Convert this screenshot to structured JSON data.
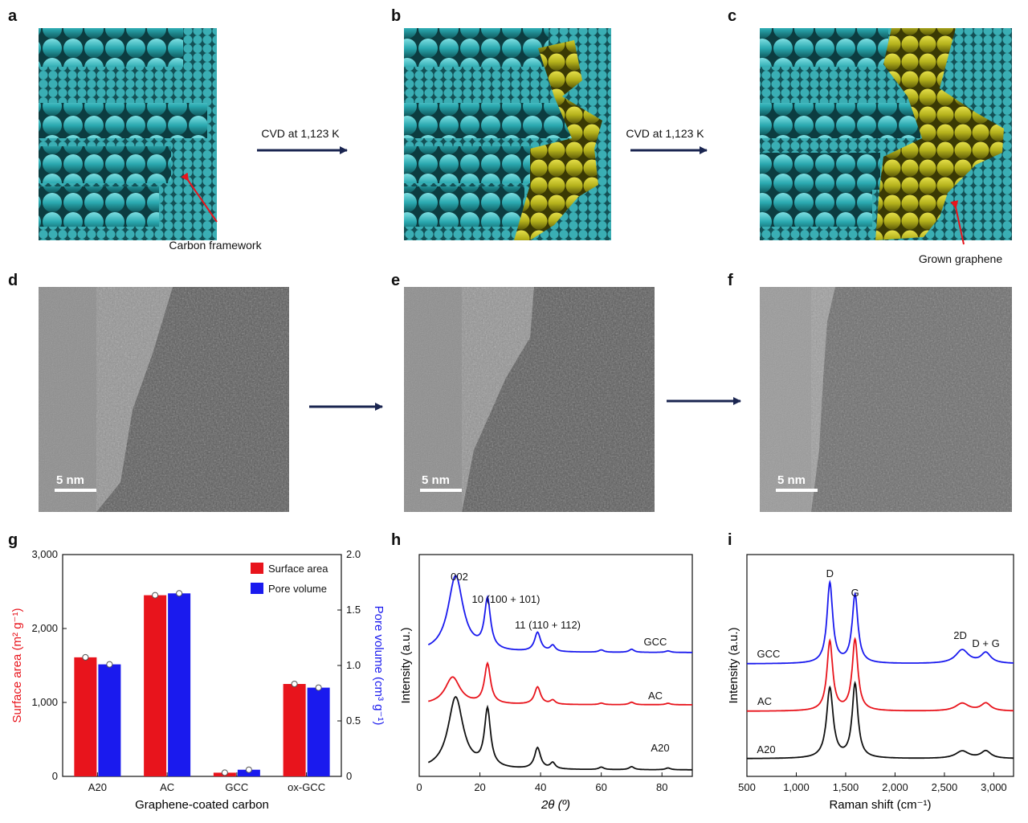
{
  "panels": {
    "a": "a",
    "b": "b",
    "c": "c",
    "d": "d",
    "e": "e",
    "f": "f",
    "g": "g",
    "h": "h",
    "i": "i"
  },
  "top_row": {
    "arrow1_label": "CVD at 1,123 K",
    "arrow2_label": "CVD at 1,123 K",
    "carbon_framework_label": "Carbon framework",
    "grown_graphene_label": "Grown graphene"
  },
  "tem": {
    "scalebar_d": "5 nm",
    "scalebar_e": "5 nm",
    "scalebar_f": "5 nm"
  },
  "colors": {
    "carbon": "#2aa9b0",
    "graphene": "#b5b21c",
    "arrow": "#1a2550",
    "red": "#e8141c",
    "blue": "#1a1aee",
    "black": "#111111"
  },
  "chart_data": [
    {
      "type": "bar",
      "panel": "g",
      "xlabel": "Graphene-coated carbon",
      "ylabel": "Surface area (m² g⁻¹)",
      "y2label": "Pore volume (cm³ g⁻¹)",
      "categories": [
        "A20",
        "AC",
        "GCC",
        "ox-GCC"
      ],
      "ylim": [
        0,
        3000
      ],
      "y2lim": [
        0,
        2.0
      ],
      "yticks": [
        "0",
        "1,000",
        "2,000",
        "3,000"
      ],
      "y2ticks": [
        "0",
        "0.5",
        "1.0",
        "1.5",
        "2.0"
      ],
      "series": [
        {
          "name": "Surface area",
          "axis": "left",
          "values": [
            1610,
            2450,
            50,
            1250
          ]
        },
        {
          "name": "Pore volume",
          "axis": "right",
          "values": [
            1.01,
            1.65,
            0.06,
            0.8
          ]
        }
      ],
      "legend": "top-right"
    },
    {
      "type": "line",
      "panel": "h",
      "xlabel": "2θ (º)",
      "ylabel": "Intensity (a.u.)",
      "xlim": [
        3,
        90
      ],
      "xticks": [
        "0",
        "20",
        "40",
        "60",
        "80"
      ],
      "annotations": [
        "002",
        "10 (100 + 101)",
        "11 (110 + 112)"
      ],
      "series": [
        {
          "name": "GCC",
          "peaks": [
            [
              12,
              1.0,
              3.0
            ],
            [
              22.5,
              0.65,
              1.2
            ],
            [
              39,
              0.25,
              1.2
            ],
            [
              44,
              0.08,
              1.0
            ],
            [
              60,
              0.03,
              1.0
            ],
            [
              70,
              0.04,
              1.0
            ],
            [
              82,
              0.02,
              1.0
            ]
          ]
        },
        {
          "name": "AC",
          "peaks": [
            [
              11,
              0.55,
              3.0
            ],
            [
              22.5,
              0.8,
              1.2
            ],
            [
              39,
              0.35,
              1.2
            ],
            [
              44,
              0.08,
              1.0
            ],
            [
              60,
              0.03,
              1.0
            ],
            [
              70,
              0.05,
              1.0
            ],
            [
              82,
              0.03,
              1.0
            ]
          ]
        },
        {
          "name": "A20",
          "peaks": [
            [
              12,
              1.2,
              3.0
            ],
            [
              22.5,
              0.95,
              1.2
            ],
            [
              39,
              0.35,
              1.2
            ],
            [
              44,
              0.1,
              1.0
            ],
            [
              60,
              0.04,
              1.0
            ],
            [
              70,
              0.05,
              1.0
            ],
            [
              82,
              0.03,
              1.0
            ]
          ]
        }
      ]
    },
    {
      "type": "line",
      "panel": "i",
      "xlabel": "Raman shift (cm⁻¹)",
      "ylabel": "Intensity (a.u.)",
      "xlim": [
        500,
        3200
      ],
      "xticks": [
        "500",
        "1,000",
        "1,500",
        "2,000",
        "2,500",
        "3,000"
      ],
      "annotations": [
        "D",
        "G",
        "2D",
        "D + G"
      ],
      "series": [
        {
          "name": "GCC",
          "peaks": [
            [
              1340,
              1.0,
              35
            ],
            [
              1595,
              0.85,
              35
            ],
            [
              2680,
              0.17,
              80
            ],
            [
              2920,
              0.13,
              60
            ]
          ]
        },
        {
          "name": "AC",
          "peaks": [
            [
              1340,
              0.9,
              35
            ],
            [
              1595,
              0.92,
              35
            ],
            [
              2680,
              0.1,
              80
            ],
            [
              2920,
              0.1,
              60
            ]
          ]
        },
        {
          "name": "A20",
          "peaks": [
            [
              1340,
              0.95,
              40
            ],
            [
              1595,
              1.0,
              35
            ],
            [
              2680,
              0.1,
              80
            ],
            [
              2920,
              0.1,
              60
            ]
          ]
        }
      ]
    }
  ]
}
